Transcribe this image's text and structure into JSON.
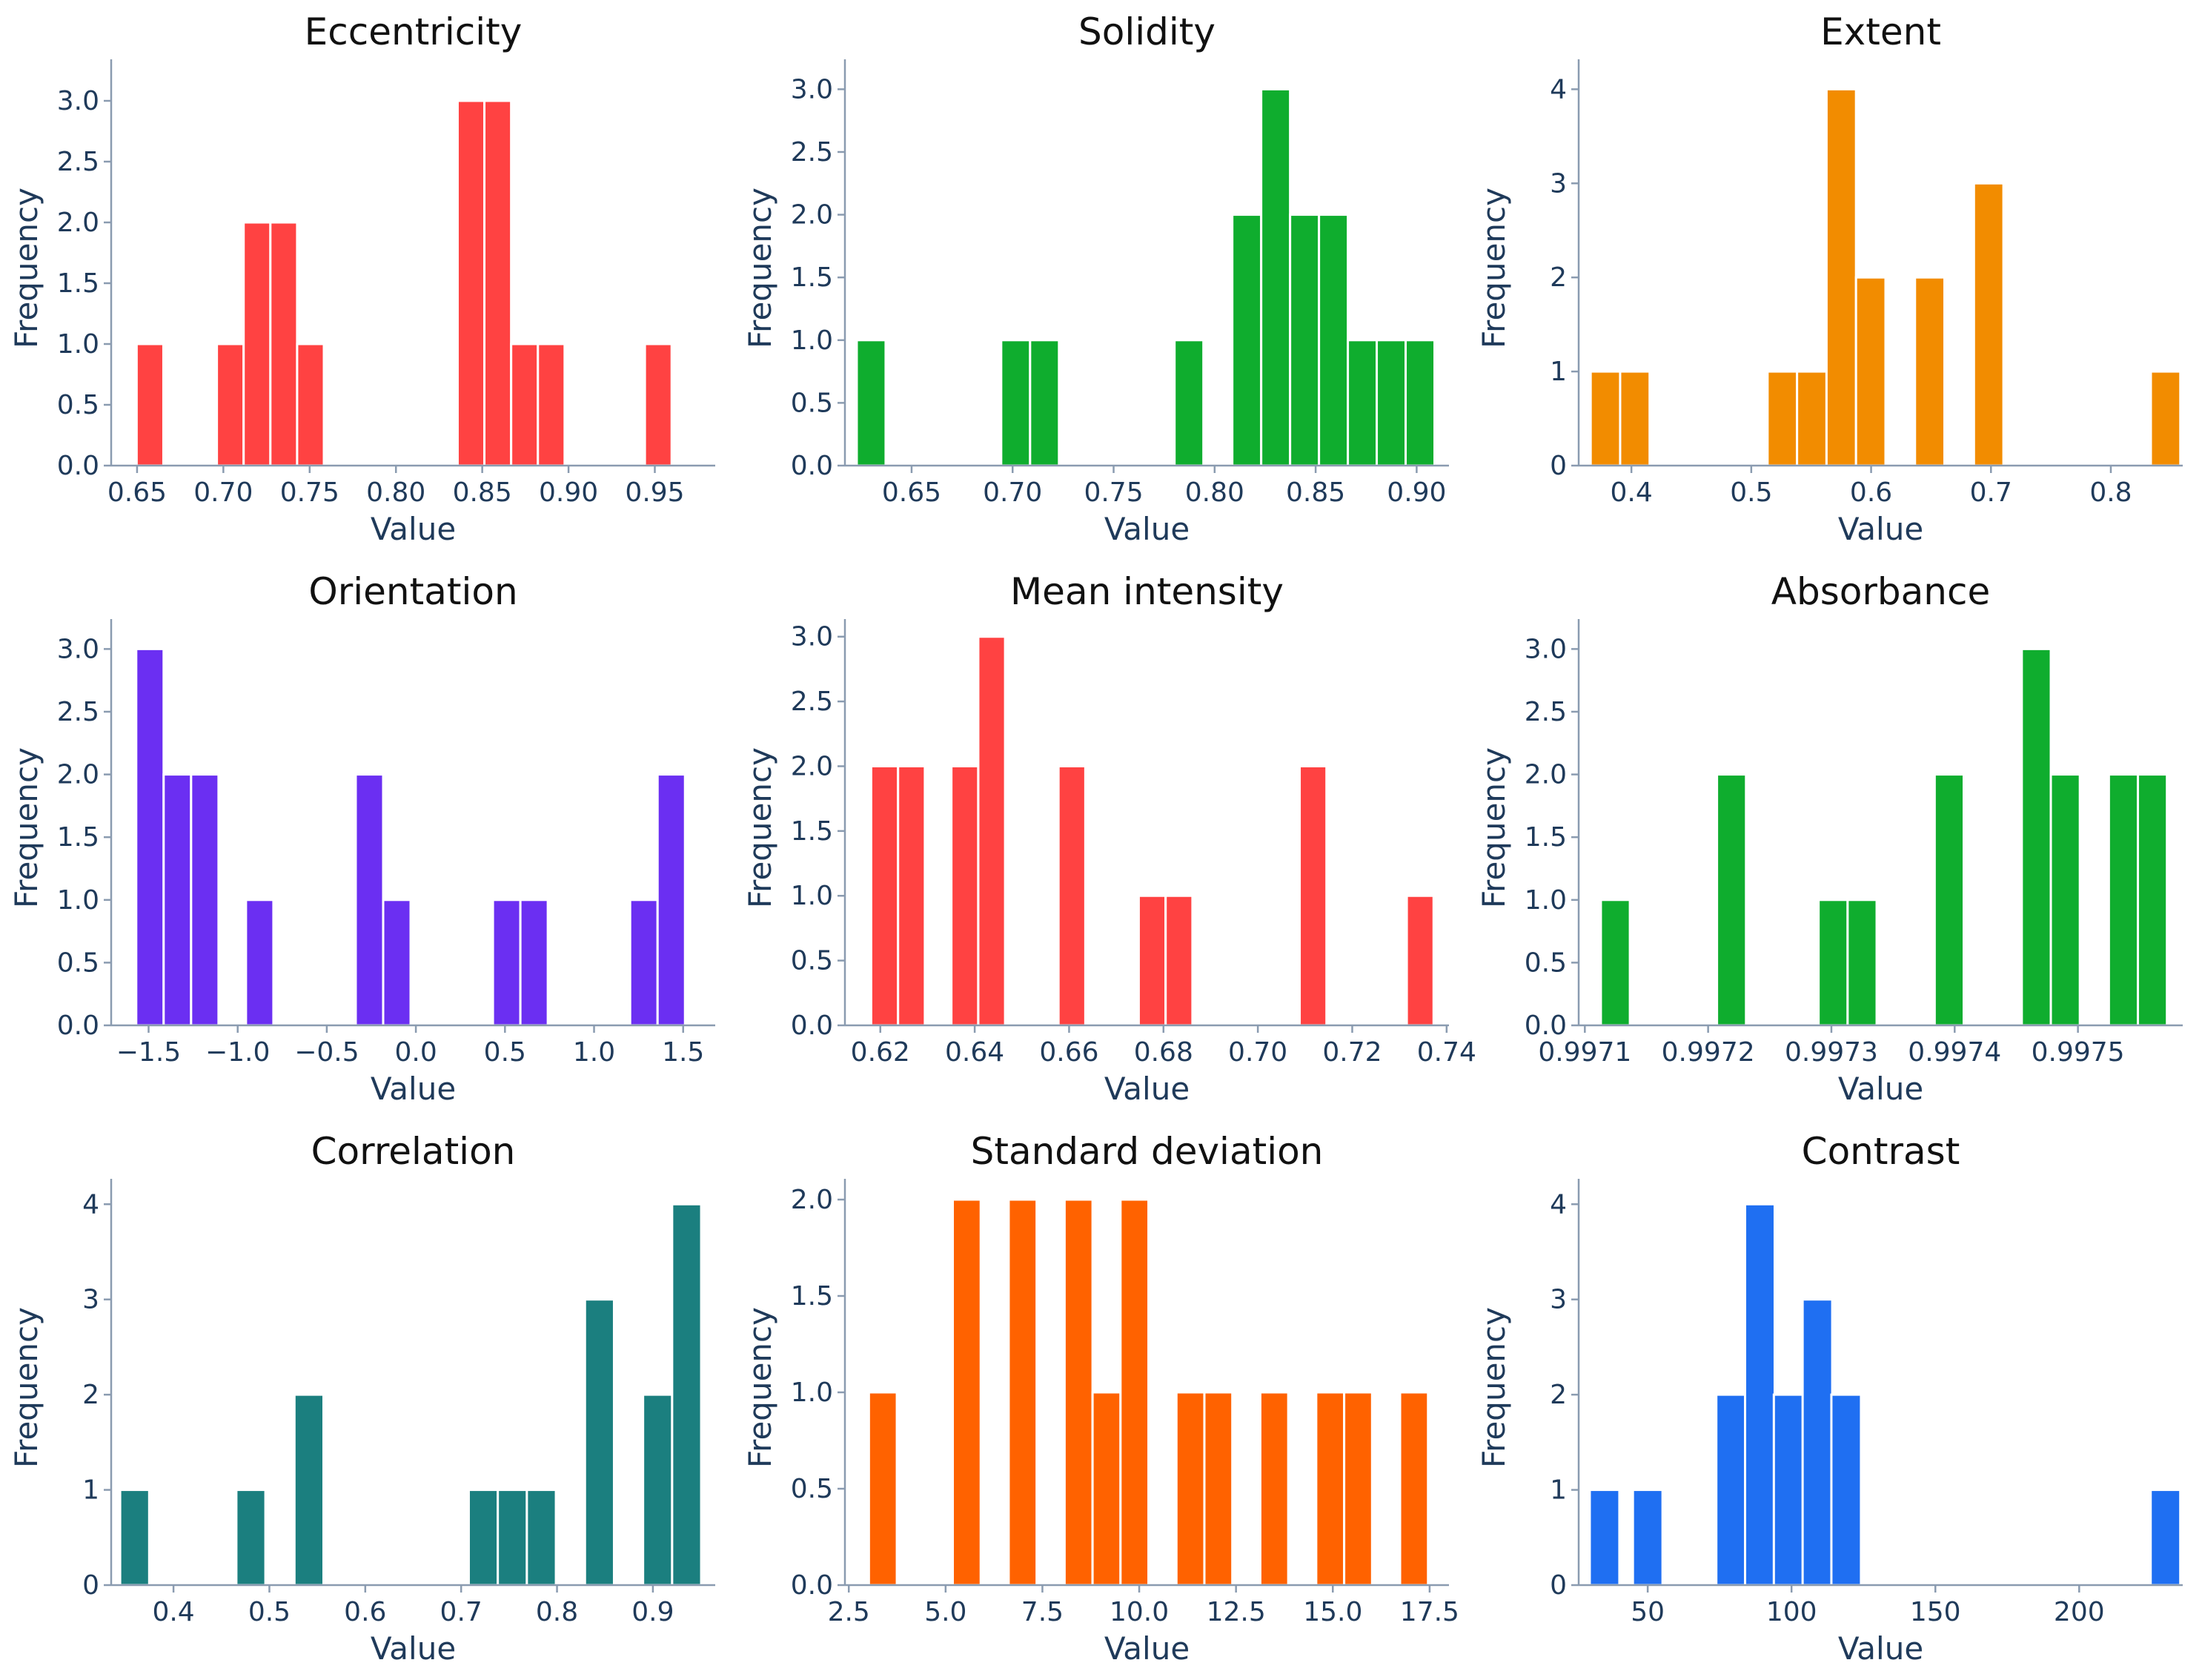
{
  "figure": {
    "background": "#ffffff"
  },
  "chart_data": [
    {
      "type": "bar",
      "title": "Eccentricity",
      "xlabel": "Value",
      "ylabel": "Frequency",
      "color": "#ff4242",
      "bin_width": 0.0155,
      "xlim": [
        0.635,
        0.985
      ],
      "ylim": [
        0,
        3.25
      ],
      "xticks": [
        0.65,
        0.7,
        0.75,
        0.8,
        0.85,
        0.9,
        0.95
      ],
      "xtick_labels": [
        "0.65",
        "0.70",
        "0.75",
        "0.80",
        "0.85",
        "0.90",
        "0.95"
      ],
      "yticks": [
        0.0,
        0.5,
        1.0,
        1.5,
        2.0,
        2.5,
        3.0
      ],
      "ytick_labels": [
        "0.0",
        "0.5",
        "1.0",
        "1.5",
        "2.0",
        "2.5",
        "3.0"
      ],
      "x": [
        0.6575,
        0.704,
        0.7195,
        0.735,
        0.7505,
        0.8435,
        0.859,
        0.8745,
        0.89,
        0.952
      ],
      "values": [
        1,
        1,
        2,
        2,
        1,
        3,
        3,
        1,
        1,
        1
      ]
    },
    {
      "type": "bar",
      "title": "Solidity",
      "xlabel": "Value",
      "ylabel": "Frequency",
      "color": "#0fad2e",
      "bin_width": 0.0143,
      "xlim": [
        0.617,
        0.916
      ],
      "ylim": [
        0,
        3.15
      ],
      "xticks": [
        0.65,
        0.7,
        0.75,
        0.8,
        0.85,
        0.9
      ],
      "xtick_labels": [
        "0.65",
        "0.70",
        "0.75",
        "0.80",
        "0.85",
        "0.90"
      ],
      "yticks": [
        0.0,
        0.5,
        1.0,
        1.5,
        2.0,
        2.5,
        3.0
      ],
      "ytick_labels": [
        "0.0",
        "0.5",
        "1.0",
        "1.5",
        "2.0",
        "2.5",
        "3.0"
      ],
      "x": [
        0.63,
        0.7015,
        0.7158,
        0.7873,
        0.8159,
        0.8302,
        0.8445,
        0.8588,
        0.8731,
        0.8874,
        0.9017
      ],
      "values": [
        1,
        1,
        1,
        1,
        2,
        3,
        2,
        2,
        1,
        1,
        1
      ]
    },
    {
      "type": "bar",
      "title": "Extent",
      "xlabel": "Value",
      "ylabel": "Frequency",
      "color": "#f28c00",
      "bin_width": 0.0246,
      "xlim": [
        0.356,
        0.86
      ],
      "ylim": [
        0,
        4.2
      ],
      "xticks": [
        0.4,
        0.5,
        0.6,
        0.7,
        0.8
      ],
      "xtick_labels": [
        "0.4",
        "0.5",
        "0.6",
        "0.7",
        "0.8"
      ],
      "yticks": [
        0,
        1,
        2,
        3,
        4
      ],
      "ytick_labels": [
        "0",
        "1",
        "2",
        "3",
        "4"
      ],
      "x": [
        0.3783,
        0.4029,
        0.5259,
        0.5505,
        0.5751,
        0.5997,
        0.6489,
        0.6981,
        0.8457
      ],
      "values": [
        1,
        1,
        1,
        1,
        4,
        2,
        2,
        3,
        1
      ]
    },
    {
      "type": "bar",
      "title": "Orientation",
      "xlabel": "Value",
      "ylabel": "Frequency",
      "color": "#6b2ff2",
      "bin_width": 0.154,
      "xlim": [
        -1.71,
        1.68
      ],
      "ylim": [
        0,
        3.15
      ],
      "xticks": [
        -1.5,
        -1.0,
        -0.5,
        0.0,
        0.5,
        1.0,
        1.5
      ],
      "xtick_labels": [
        "−1.5",
        "−1.0",
        "−0.5",
        "0.0",
        "0.5",
        "1.0",
        "1.5"
      ],
      "yticks": [
        0.0,
        0.5,
        1.0,
        1.5,
        2.0,
        2.5,
        3.0
      ],
      "ytick_labels": [
        "0.0",
        "0.5",
        "1.0",
        "1.5",
        "2.0",
        "2.5",
        "3.0"
      ],
      "x": [
        -1.4925,
        -1.3385,
        -1.1845,
        -0.8765,
        -0.2605,
        -0.1065,
        0.5095,
        0.6635,
        1.2795,
        1.4335
      ],
      "values": [
        3,
        2,
        2,
        1,
        2,
        1,
        1,
        1,
        1,
        2
      ]
    },
    {
      "type": "bar",
      "title": "Mean intensity",
      "xlabel": "Value",
      "ylabel": "Frequency",
      "color": "#ff4242",
      "bin_width": 0.00568,
      "xlim": [
        0.6125,
        0.7405
      ],
      "ylim": [
        0,
        3.05
      ],
      "xticks": [
        0.62,
        0.64,
        0.66,
        0.68,
        0.7,
        0.72,
        0.74
      ],
      "xtick_labels": [
        "0.62",
        "0.64",
        "0.66",
        "0.68",
        "0.70",
        "0.72",
        "0.74"
      ],
      "yticks": [
        0.0,
        0.5,
        1.0,
        1.5,
        2.0,
        2.5,
        3.0
      ],
      "ytick_labels": [
        "0.0",
        "0.5",
        "1.0",
        "1.5",
        "2.0",
        "2.5",
        "3.0"
      ],
      "x": [
        0.6209,
        0.6266,
        0.6379,
        0.6436,
        0.6606,
        0.6776,
        0.6833,
        0.7117,
        0.7344
      ],
      "values": [
        2,
        2,
        2,
        3,
        2,
        1,
        1,
        2,
        1
      ]
    },
    {
      "type": "bar",
      "title": "Absorbance",
      "xlabel": "Value",
      "ylabel": "Frequency",
      "color": "#0fad2e",
      "bin_width": 2.355e-05,
      "xlim": [
        0.997095,
        0.997585
      ],
      "ylim": [
        0,
        3.15
      ],
      "xticks": [
        0.9971,
        0.9972,
        0.9973,
        0.9974,
        0.9975
      ],
      "xtick_labels": [
        "0.9971",
        "0.9972",
        "0.9973",
        "0.9974",
        "0.9975"
      ],
      "yticks": [
        0.0,
        0.5,
        1.0,
        1.5,
        2.0,
        2.5,
        3.0
      ],
      "ytick_labels": [
        "0.0",
        "0.5",
        "1.0",
        "1.5",
        "2.0",
        "2.5",
        "3.0"
      ],
      "x": [
        0.99712477,
        0.99721897,
        0.99730138,
        0.99732493,
        0.99739557,
        0.99746622,
        0.99748977,
        0.99753687,
        0.99756042
      ],
      "values": [
        1,
        2,
        1,
        1,
        2,
        3,
        2,
        2,
        2
      ]
    },
    {
      "type": "bar",
      "title": "Correlation",
      "xlabel": "Value",
      "ylabel": "Frequency",
      "color": "#1b7f7f",
      "bin_width": 0.0303,
      "xlim": [
        0.335,
        0.965
      ],
      "ylim": [
        0,
        4.15
      ],
      "xticks": [
        0.4,
        0.5,
        0.6,
        0.7,
        0.8,
        0.9
      ],
      "xtick_labels": [
        "0.4",
        "0.5",
        "0.6",
        "0.7",
        "0.8",
        "0.9"
      ],
      "yticks": [
        0,
        1,
        2,
        3,
        4
      ],
      "ytick_labels": [
        "0",
        "1",
        "2",
        "3",
        "4"
      ],
      "x": [
        0.3595,
        0.4807,
        0.5413,
        0.7231,
        0.7534,
        0.7837,
        0.8443,
        0.9049,
        0.9352
      ],
      "values": [
        1,
        1,
        2,
        1,
        1,
        1,
        3,
        2,
        4
      ]
    },
    {
      "type": "bar",
      "title": "Standard deviation",
      "xlabel": "Value",
      "ylabel": "Frequency",
      "color": "#ff6200",
      "bin_width": 0.722,
      "xlim": [
        2.4,
        18.0
      ],
      "ylim": [
        0,
        2.05
      ],
      "xticks": [
        2.5,
        5.0,
        7.5,
        10.0,
        12.5,
        15.0,
        17.5
      ],
      "xtick_labels": [
        "2.5",
        "5.0",
        "7.5",
        "10.0",
        "12.5",
        "15.0",
        "17.5"
      ],
      "yticks": [
        0.0,
        0.5,
        1.0,
        1.5,
        2.0
      ],
      "ytick_labels": [
        "0.0",
        "0.5",
        "1.0",
        "1.5",
        "2.0"
      ],
      "x": [
        3.38,
        5.546,
        6.99,
        8.434,
        9.156,
        9.878,
        11.322,
        12.044,
        13.488,
        14.932,
        15.654,
        17.098
      ],
      "values": [
        1,
        2,
        2,
        2,
        1,
        2,
        1,
        1,
        1,
        1,
        1,
        1
      ]
    },
    {
      "type": "bar",
      "title": "Contrast",
      "xlabel": "Value",
      "ylabel": "Frequency",
      "color": "#1f6ff2",
      "bin_width": 10.3,
      "xlim": [
        26.0,
        236.0
      ],
      "ylim": [
        0,
        4.15
      ],
      "xticks": [
        50,
        100,
        150,
        200
      ],
      "xtick_labels": [
        "50",
        "100",
        "150",
        "200"
      ],
      "yticks": [
        0,
        1,
        2,
        3,
        4
      ],
      "ytick_labels": [
        "0",
        "1",
        "2",
        "3",
        "4"
      ],
      "x": [
        35.0,
        50.0,
        79.0,
        89.0,
        99.0,
        109.0,
        119.0,
        230.0
      ],
      "values": [
        1,
        1,
        2,
        4,
        2,
        3,
        2,
        1
      ]
    }
  ]
}
